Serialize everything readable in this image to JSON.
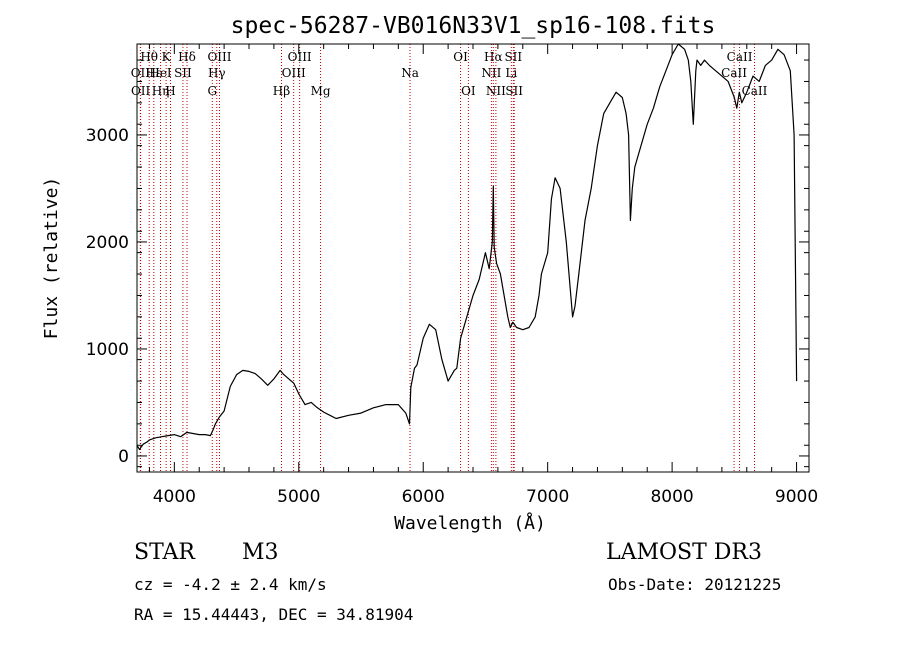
{
  "chart_data": {
    "type": "line",
    "title": "spec-56287-VB016N33V1_sp16-108.fits",
    "xlabel": "Wavelength (Å)",
    "ylabel": "Flux (relative)",
    "xlim": [
      3700,
      9100
    ],
    "ylim": [
      -150,
      3850
    ],
    "xticks": [
      4000,
      5000,
      6000,
      7000,
      8000,
      9000
    ],
    "yticks": [
      0,
      1000,
      2000,
      3000
    ],
    "series": [
      {
        "name": "flux",
        "x": [
          3700,
          3720,
          3750,
          3780,
          3800,
          3850,
          3900,
          3950,
          4000,
          4050,
          4100,
          4150,
          4200,
          4250,
          4290,
          4310,
          4330,
          4360,
          4400,
          4450,
          4500,
          4550,
          4600,
          4650,
          4700,
          4750,
          4800,
          4850,
          4880,
          4920,
          4960,
          5000,
          5050,
          5100,
          5150,
          5200,
          5250,
          5300,
          5400,
          5500,
          5600,
          5700,
          5800,
          5860,
          5890,
          5900,
          5930,
          5950,
          6000,
          6050,
          6100,
          6150,
          6200,
          6250,
          6270,
          6300,
          6350,
          6400,
          6450,
          6500,
          6530,
          6555,
          6563,
          6570,
          6590,
          6620,
          6650,
          6680,
          6700,
          6720,
          6750,
          6800,
          6850,
          6900,
          6930,
          6950,
          7000,
          7030,
          7060,
          7100,
          7150,
          7200,
          7220,
          7250,
          7300,
          7350,
          7400,
          7450,
          7500,
          7550,
          7600,
          7630,
          7650,
          7665,
          7680,
          7700,
          7750,
          7800,
          7850,
          7900,
          7950,
          8000,
          8050,
          8100,
          8130,
          8150,
          8170,
          8190,
          8200,
          8230,
          8260,
          8300,
          8350,
          8400,
          8450,
          8500,
          8520,
          8540,
          8560,
          8600,
          8650,
          8700,
          8750,
          8800,
          8850,
          8900,
          8950,
          8980,
          9000
        ],
        "y": [
          100,
          60,
          110,
          130,
          150,
          170,
          180,
          190,
          200,
          180,
          220,
          210,
          200,
          200,
          190,
          240,
          300,
          360,
          420,
          650,
          760,
          800,
          790,
          770,
          720,
          660,
          720,
          800,
          760,
          720,
          680,
          580,
          480,
          500,
          450,
          410,
          380,
          350,
          380,
          400,
          450,
          480,
          480,
          400,
          300,
          640,
          820,
          850,
          1100,
          1230,
          1180,
          900,
          700,
          800,
          820,
          1100,
          1300,
          1500,
          1650,
          1900,
          1750,
          2000,
          2520,
          1950,
          1800,
          1700,
          1500,
          1300,
          1200,
          1250,
          1200,
          1180,
          1200,
          1300,
          1500,
          1700,
          1900,
          2400,
          2600,
          2500,
          2000,
          1300,
          1400,
          1700,
          2200,
          2500,
          2900,
          3200,
          3300,
          3400,
          3350,
          3200,
          3000,
          2200,
          2500,
          2700,
          2900,
          3100,
          3250,
          3450,
          3600,
          3750,
          3850,
          3800,
          3700,
          3500,
          3100,
          3600,
          3700,
          3650,
          3700,
          3650,
          3600,
          3550,
          3500,
          3350,
          3250,
          3400,
          3300,
          3400,
          3550,
          3500,
          3650,
          3700,
          3800,
          3750,
          3600,
          3000,
          700
        ]
      }
    ],
    "spectral_lines": [
      {
        "label": "Hθ",
        "wavelength": 3798,
        "row": 1
      },
      {
        "label": "OII",
        "wavelength": 3727,
        "row": 2
      },
      {
        "label": "OII",
        "wavelength": 3729,
        "row": 3
      },
      {
        "label": "Hε",
        "wavelength": 3835,
        "row": 2
      },
      {
        "label": "K",
        "wavelength": 3934,
        "row": 1
      },
      {
        "label": "HeI",
        "wavelength": 3889,
        "row": 2
      },
      {
        "label": "Hη",
        "wavelength": 3889,
        "row": 3
      },
      {
        "label": "SII",
        "wavelength": 4069,
        "row": 2
      },
      {
        "label": "H",
        "wavelength": 3969,
        "row": 3
      },
      {
        "label": "Hδ",
        "wavelength": 4102,
        "row": 1
      },
      {
        "label": "OIII",
        "wavelength": 4363,
        "row": 1
      },
      {
        "label": "Hγ",
        "wavelength": 4341,
        "row": 2
      },
      {
        "label": "G",
        "wavelength": 4305,
        "row": 3
      },
      {
        "label": "OIII",
        "wavelength": 5007,
        "row": 1
      },
      {
        "label": "OIII",
        "wavelength": 4959,
        "row": 2
      },
      {
        "label": "Hβ",
        "wavelength": 4861,
        "row": 3
      },
      {
        "label": "Mg",
        "wavelength": 5175,
        "row": 3
      },
      {
        "label": "Na",
        "wavelength": 5894,
        "row": 2
      },
      {
        "label": "OI",
        "wavelength": 6300,
        "row": 1
      },
      {
        "label": "OI",
        "wavelength": 6363,
        "row": 3
      },
      {
        "label": "Hα",
        "wavelength": 6563,
        "row": 1
      },
      {
        "label": "SII",
        "wavelength": 6724,
        "row": 1
      },
      {
        "label": "NII",
        "wavelength": 6548,
        "row": 2
      },
      {
        "label": "Li",
        "wavelength": 6708,
        "row": 2
      },
      {
        "label": "NII",
        "wavelength": 6584,
        "row": 3
      },
      {
        "label": "SII",
        "wavelength": 6731,
        "row": 3
      },
      {
        "label": "CaII",
        "wavelength": 8542,
        "row": 1
      },
      {
        "label": "CaII",
        "wavelength": 8498,
        "row": 2
      },
      {
        "label": "CaII",
        "wavelength": 8662,
        "row": 3
      }
    ],
    "line_marker_color": "#c00000",
    "line_color": "#000000"
  },
  "info": {
    "object_class": "STAR",
    "subclass": "M3",
    "survey": "LAMOST DR3",
    "redshift": "cz = -4.2 ± 2.4 km/s",
    "obs_date": "Obs-Date: 20121225",
    "coords": "RA =  15.44443, DEC =  34.81904"
  }
}
